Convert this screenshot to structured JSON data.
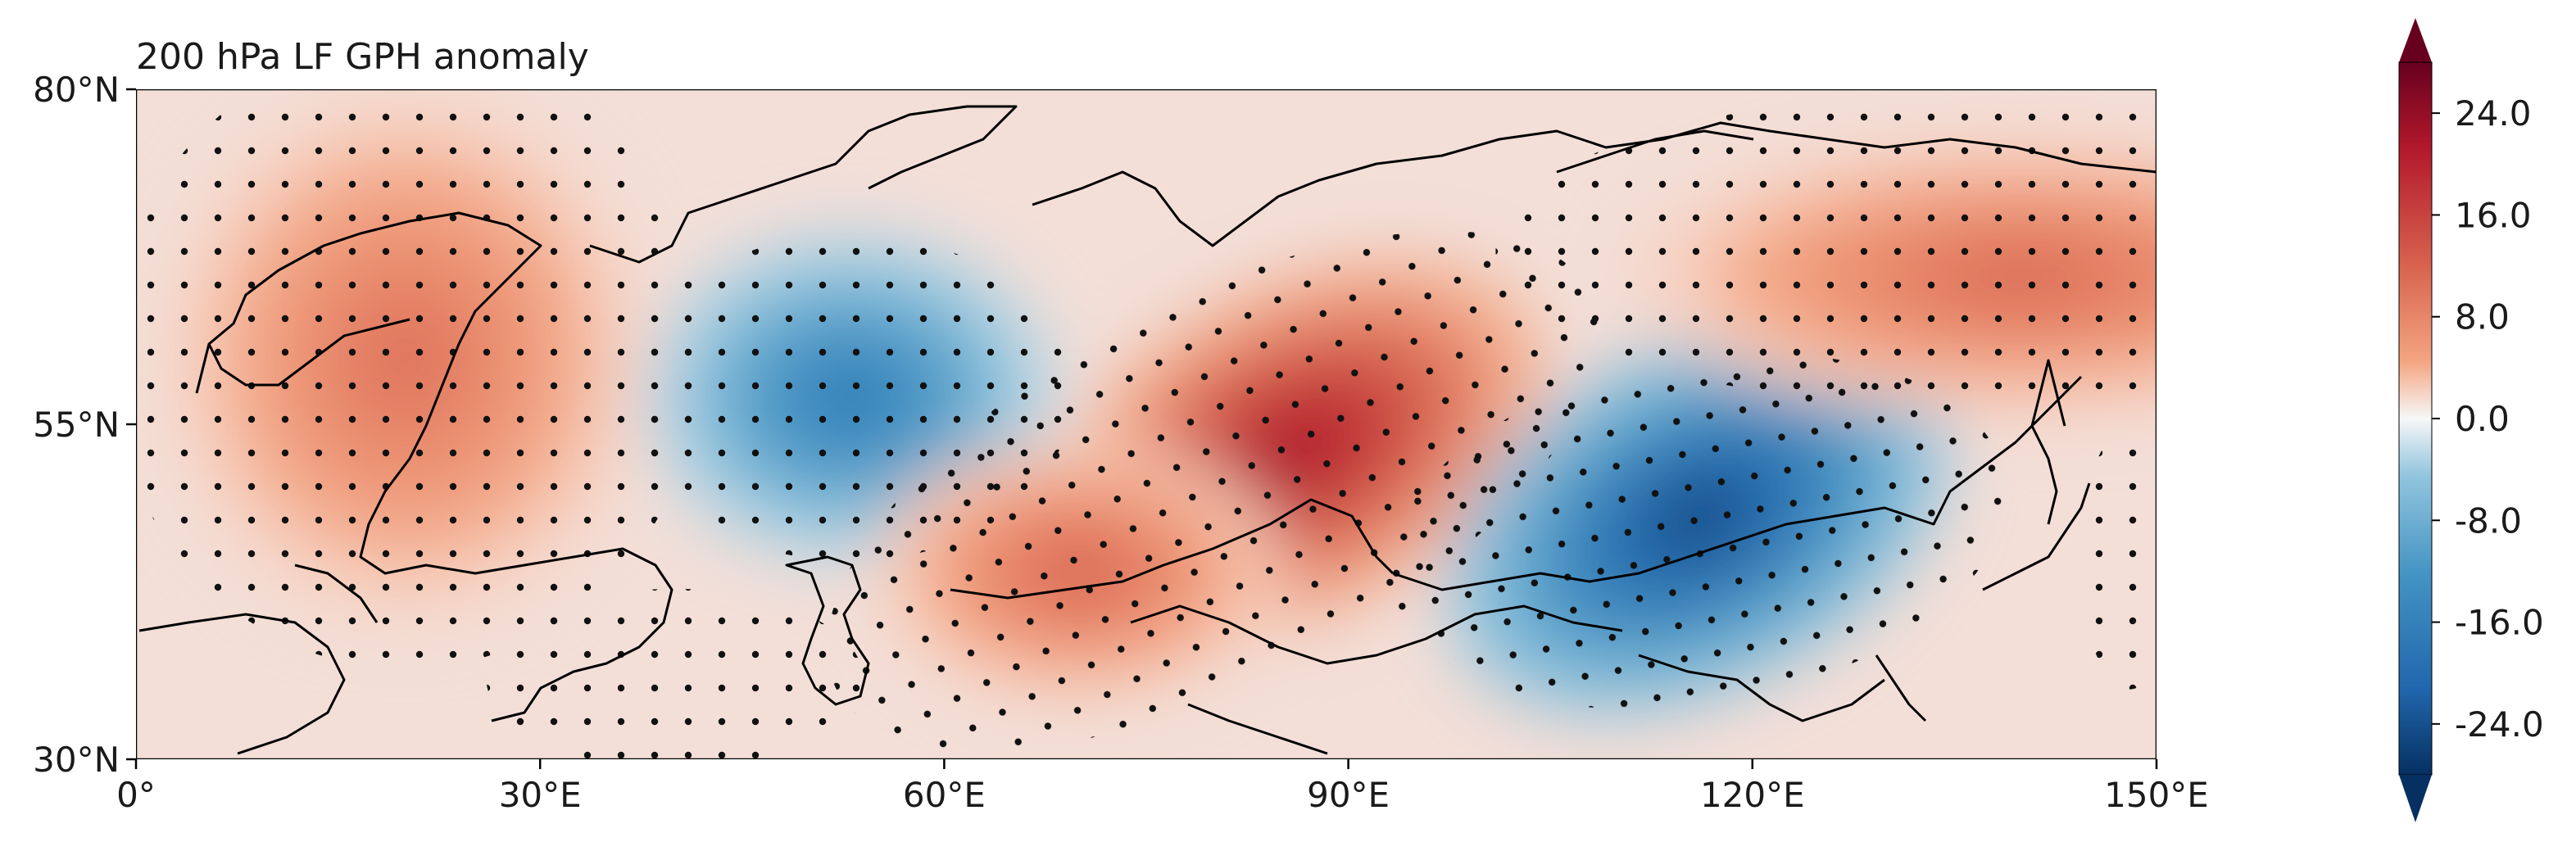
{
  "chart_data": {
    "type": "heatmap",
    "title": "200 hPa LF GPH anomaly",
    "xlabel": "",
    "ylabel": "",
    "projection": "PlateCarree",
    "extent": {
      "lon": [
        0,
        150
      ],
      "lat": [
        30,
        80
      ]
    },
    "x_ticks": [
      "0°",
      "30°E",
      "60°E",
      "90°E",
      "120°E",
      "150°E"
    ],
    "x_tick_values": [
      0,
      30,
      60,
      90,
      120,
      150
    ],
    "y_ticks": [
      "30°N",
      "55°N",
      "80°N"
    ],
    "y_tick_values": [
      30,
      55,
      80
    ],
    "colormap": "RdBu_r",
    "color_range": [
      -28,
      28
    ],
    "colorbar_ticks": [
      "24.0",
      "16.0",
      "8.0",
      "0.0",
      "-8.0",
      "-16.0",
      "-24.0"
    ],
    "colorbar_tick_values": [
      24,
      16,
      8,
      0,
      -8,
      -16,
      -24
    ],
    "colorbar_extend": "both",
    "stippling": "significant regions marked with dots",
    "anomaly_centers": [
      {
        "sign": "positive",
        "lon": 20,
        "lat": 60,
        "value": 12
      },
      {
        "sign": "negative",
        "lon": 53,
        "lat": 57,
        "value": -20
      },
      {
        "sign": "positive",
        "lon": 86,
        "lat": 53,
        "value": 26
      },
      {
        "sign": "positive",
        "lon": 70,
        "lat": 44,
        "value": 14
      },
      {
        "sign": "negative",
        "lon": 116,
        "lat": 48,
        "value": -30
      },
      {
        "sign": "positive",
        "lon": 140,
        "lat": 66,
        "value": 13
      }
    ]
  }
}
